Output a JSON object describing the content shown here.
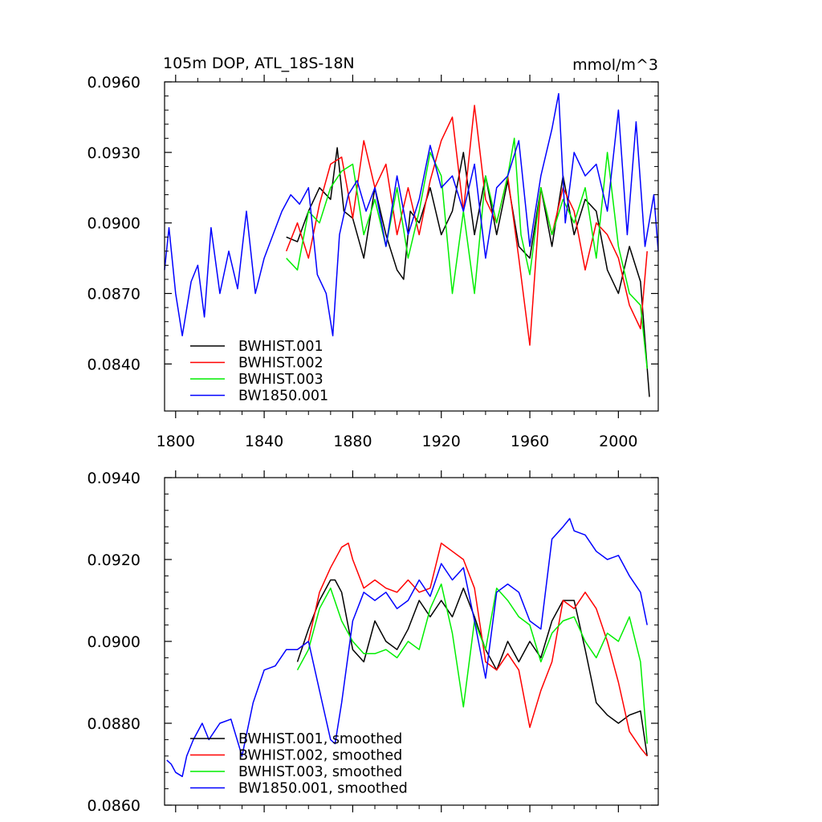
{
  "chart_data": [
    {
      "type": "line",
      "title": "105m DOP, ATL_18S-18N",
      "units": "mmol/m^3",
      "xlim": [
        1795,
        2018
      ],
      "ylim": [
        0.082,
        0.096
      ],
      "xticks": [
        1800,
        1840,
        1880,
        1920,
        1960,
        2000
      ],
      "xtick_labels": [
        "1800",
        "1840",
        "1880",
        "1920",
        "1960",
        "2000"
      ],
      "yticks": [
        0.084,
        0.087,
        0.09,
        0.093,
        0.096
      ],
      "ytick_labels": [
        "0.0840",
        "0.0870",
        "0.0900",
        "0.0930",
        "0.0960"
      ],
      "legend_position": "lower-left",
      "series": [
        {
          "name": "BWHIST.001",
          "color": "#000000",
          "x": [
            1850,
            1855,
            1860,
            1865,
            1870,
            1873,
            1876,
            1880,
            1885,
            1890,
            1895,
            1900,
            1903,
            1906,
            1910,
            1915,
            1920,
            1925,
            1930,
            1935,
            1940,
            1945,
            1950,
            1955,
            1960,
            1965,
            1970,
            1975,
            1980,
            1985,
            1990,
            1995,
            2000,
            2005,
            2010,
            2014
          ],
          "y": [
            0.0894,
            0.0892,
            0.0905,
            0.0915,
            0.091,
            0.0932,
            0.0905,
            0.0902,
            0.0885,
            0.0915,
            0.0895,
            0.088,
            0.0876,
            0.0905,
            0.09,
            0.0915,
            0.0895,
            0.0905,
            0.093,
            0.0895,
            0.092,
            0.0895,
            0.0918,
            0.089,
            0.0885,
            0.0915,
            0.089,
            0.092,
            0.0895,
            0.091,
            0.0905,
            0.088,
            0.087,
            0.089,
            0.0875,
            0.0826
          ]
        },
        {
          "name": "BWHIST.002",
          "color": "#ff0000",
          "x": [
            1850,
            1855,
            1860,
            1865,
            1870,
            1875,
            1880,
            1885,
            1890,
            1895,
            1900,
            1905,
            1910,
            1915,
            1920,
            1925,
            1930,
            1935,
            1940,
            1945,
            1950,
            1955,
            1960,
            1965,
            1970,
            1975,
            1980,
            1985,
            1990,
            1995,
            2000,
            2005,
            2010,
            2013
          ],
          "y": [
            0.0888,
            0.09,
            0.0885,
            0.0908,
            0.0925,
            0.0928,
            0.0902,
            0.0935,
            0.0915,
            0.0925,
            0.0895,
            0.0915,
            0.0895,
            0.0918,
            0.0935,
            0.0945,
            0.0905,
            0.095,
            0.091,
            0.09,
            0.092,
            0.0885,
            0.0848,
            0.0915,
            0.0895,
            0.0915,
            0.0905,
            0.088,
            0.09,
            0.0895,
            0.0885,
            0.0865,
            0.0855,
            0.0888
          ]
        },
        {
          "name": "BWHIST.003",
          "color": "#00ee00",
          "x": [
            1850,
            1855,
            1860,
            1865,
            1870,
            1875,
            1880,
            1885,
            1890,
            1895,
            1900,
            1905,
            1910,
            1915,
            1920,
            1925,
            1930,
            1935,
            1940,
            1945,
            1950,
            1953,
            1956,
            1960,
            1965,
            1970,
            1975,
            1980,
            1985,
            1990,
            1995,
            2000,
            2005,
            2010,
            2013
          ],
          "y": [
            0.0885,
            0.088,
            0.0905,
            0.09,
            0.0915,
            0.0922,
            0.0925,
            0.0895,
            0.091,
            0.089,
            0.0915,
            0.0885,
            0.0905,
            0.093,
            0.092,
            0.087,
            0.0905,
            0.087,
            0.092,
            0.09,
            0.092,
            0.0936,
            0.0895,
            0.0878,
            0.0915,
            0.0895,
            0.091,
            0.09,
            0.0915,
            0.0885,
            0.093,
            0.089,
            0.087,
            0.0865,
            0.0838
          ]
        },
        {
          "name": "BW1850.001",
          "color": "#0000ff",
          "x": [
            1795,
            1797,
            1800,
            1803,
            1807,
            1810,
            1813,
            1816,
            1820,
            1824,
            1828,
            1832,
            1836,
            1840,
            1844,
            1848,
            1852,
            1856,
            1860,
            1864,
            1868,
            1871,
            1874,
            1878,
            1882,
            1886,
            1890,
            1895,
            1900,
            1905,
            1910,
            1915,
            1920,
            1925,
            1930,
            1935,
            1940,
            1945,
            1950,
            1955,
            1960,
            1965,
            1970,
            1973,
            1976,
            1980,
            1985,
            1990,
            1995,
            2000,
            2004,
            2008,
            2012,
            2016,
            2018
          ],
          "y": [
            0.088,
            0.0898,
            0.087,
            0.0852,
            0.0875,
            0.0882,
            0.086,
            0.0898,
            0.087,
            0.0888,
            0.0872,
            0.0905,
            0.087,
            0.0885,
            0.0895,
            0.0905,
            0.0912,
            0.0908,
            0.0915,
            0.0878,
            0.087,
            0.0852,
            0.0895,
            0.0912,
            0.0918,
            0.0905,
            0.0915,
            0.089,
            0.092,
            0.0895,
            0.091,
            0.0933,
            0.0915,
            0.092,
            0.0905,
            0.0925,
            0.0885,
            0.0915,
            0.092,
            0.0935,
            0.089,
            0.092,
            0.094,
            0.0955,
            0.09,
            0.093,
            0.092,
            0.0925,
            0.0905,
            0.0948,
            0.0895,
            0.0943,
            0.089,
            0.0912,
            0.0888
          ]
        }
      ]
    },
    {
      "type": "line",
      "xlim": [
        1795,
        2018
      ],
      "ylim": [
        0.086,
        0.094
      ],
      "xticks": [
        1800,
        1840,
        1880,
        1920,
        1960,
        2000
      ],
      "yticks": [
        0.086,
        0.088,
        0.09,
        0.092,
        0.094
      ],
      "ytick_labels": [
        "0.0860",
        "0.0880",
        "0.0900",
        "0.0920",
        "0.0940"
      ],
      "legend_position": "lower-left",
      "series": [
        {
          "name": "BWHIST.001, smoothed",
          "color": "#000000",
          "x": [
            1855,
            1860,
            1865,
            1870,
            1872,
            1875,
            1880,
            1885,
            1890,
            1895,
            1900,
            1905,
            1910,
            1915,
            1920,
            1925,
            1930,
            1935,
            1940,
            1945,
            1950,
            1955,
            1960,
            1965,
            1970,
            1975,
            1980,
            1985,
            1990,
            1995,
            2000,
            2005,
            2010,
            2013
          ],
          "y": [
            0.0895,
            0.0903,
            0.091,
            0.0915,
            0.0915,
            0.0912,
            0.0898,
            0.0895,
            0.0905,
            0.09,
            0.0898,
            0.0903,
            0.091,
            0.0906,
            0.091,
            0.0906,
            0.0913,
            0.0906,
            0.0898,
            0.0893,
            0.09,
            0.0895,
            0.09,
            0.0896,
            0.0905,
            0.091,
            0.091,
            0.0898,
            0.0885,
            0.0882,
            0.088,
            0.0882,
            0.0883,
            0.0872
          ]
        },
        {
          "name": "BWHIST.002, smoothed",
          "color": "#ff0000",
          "x": [
            1855,
            1860,
            1865,
            1870,
            1875,
            1878,
            1880,
            1885,
            1890,
            1895,
            1900,
            1905,
            1910,
            1915,
            1920,
            1925,
            1930,
            1935,
            1940,
            1945,
            1950,
            1955,
            1960,
            1965,
            1970,
            1975,
            1980,
            1985,
            1990,
            1995,
            2000,
            2005,
            2010,
            2013
          ],
          "y": [
            0.0898,
            0.09,
            0.0912,
            0.0918,
            0.0923,
            0.0924,
            0.092,
            0.0913,
            0.0915,
            0.0913,
            0.0912,
            0.0915,
            0.0912,
            0.0913,
            0.0924,
            0.0922,
            0.092,
            0.0913,
            0.0895,
            0.0893,
            0.0897,
            0.0893,
            0.0879,
            0.0888,
            0.0895,
            0.091,
            0.0908,
            0.0912,
            0.0908,
            0.09,
            0.089,
            0.0878,
            0.0874,
            0.0872
          ]
        },
        {
          "name": "BWHIST.003, smoothed",
          "color": "#00ee00",
          "x": [
            1855,
            1860,
            1865,
            1870,
            1875,
            1880,
            1885,
            1890,
            1895,
            1900,
            1905,
            1910,
            1915,
            1920,
            1925,
            1930,
            1935,
            1940,
            1945,
            1950,
            1955,
            1960,
            1965,
            1970,
            1975,
            1980,
            1985,
            1990,
            1995,
            2000,
            2005,
            2010,
            2013
          ],
          "y": [
            0.0893,
            0.0898,
            0.0908,
            0.0913,
            0.0905,
            0.09,
            0.0897,
            0.0897,
            0.0898,
            0.0896,
            0.09,
            0.0898,
            0.0908,
            0.0914,
            0.0902,
            0.0884,
            0.0905,
            0.0898,
            0.0913,
            0.091,
            0.0906,
            0.0904,
            0.0895,
            0.0902,
            0.0905,
            0.0906,
            0.09,
            0.0896,
            0.0902,
            0.09,
            0.0906,
            0.0895,
            0.0875
          ]
        },
        {
          "name": "BW1850.001, smoothed",
          "color": "#0000ff",
          "x": [
            1796,
            1798,
            1800,
            1803,
            1805,
            1808,
            1812,
            1815,
            1820,
            1825,
            1830,
            1835,
            1840,
            1845,
            1850,
            1855,
            1860,
            1865,
            1870,
            1872,
            1875,
            1880,
            1885,
            1890,
            1895,
            1900,
            1905,
            1910,
            1915,
            1920,
            1925,
            1930,
            1935,
            1940,
            1945,
            1950,
            1955,
            1960,
            1965,
            1970,
            1975,
            1978,
            1980,
            1985,
            1990,
            1995,
            2000,
            2005,
            2010,
            2013
          ],
          "y": [
            0.0871,
            0.087,
            0.0868,
            0.0867,
            0.0872,
            0.0876,
            0.088,
            0.0876,
            0.088,
            0.0881,
            0.0872,
            0.0885,
            0.0893,
            0.0894,
            0.0898,
            0.0898,
            0.09,
            0.0888,
            0.0876,
            0.0875,
            0.0885,
            0.0905,
            0.0912,
            0.091,
            0.0912,
            0.0908,
            0.091,
            0.0915,
            0.0911,
            0.0919,
            0.0915,
            0.0918,
            0.0905,
            0.0891,
            0.0912,
            0.0914,
            0.0912,
            0.0905,
            0.0903,
            0.0925,
            0.0928,
            0.093,
            0.0927,
            0.0926,
            0.0922,
            0.092,
            0.0921,
            0.0916,
            0.0912,
            0.0904
          ]
        }
      ]
    }
  ]
}
